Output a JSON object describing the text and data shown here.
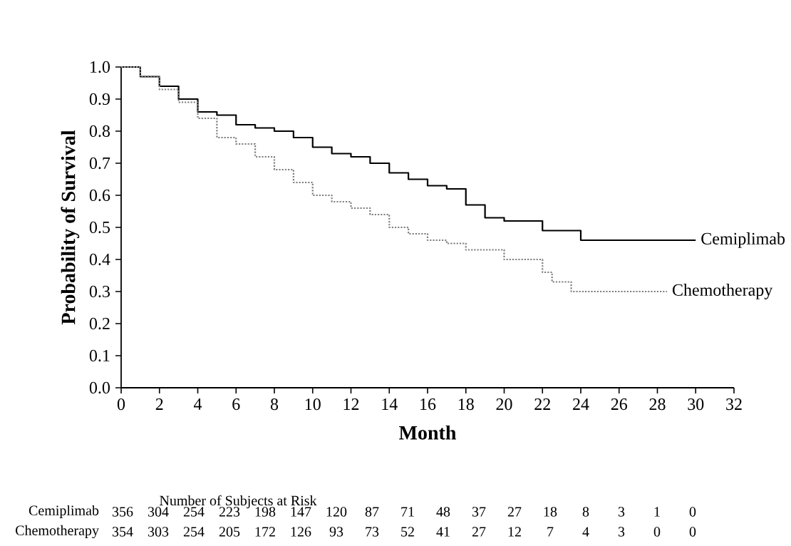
{
  "chart_data": {
    "type": "step",
    "xlabel": "Month",
    "ylabel": "Probability of Survival",
    "xlim": [
      0,
      32
    ],
    "ylim": [
      0,
      1.0
    ],
    "xticks": [
      0,
      2,
      4,
      6,
      8,
      10,
      12,
      14,
      16,
      18,
      20,
      22,
      24,
      26,
      28,
      30,
      32
    ],
    "yticks": [
      {
        "value": 0,
        "label": "0.0"
      },
      {
        "value": 0.1,
        "label": "0.1"
      },
      {
        "value": 0.2,
        "label": "0.2"
      },
      {
        "value": 0.3,
        "label": "0.3"
      },
      {
        "value": 0.4,
        "label": "0.4"
      },
      {
        "value": 0.5,
        "label": "0.5"
      },
      {
        "value": 0.6,
        "label": "0.6"
      },
      {
        "value": 0.7,
        "label": "0.7"
      },
      {
        "value": 0.8,
        "label": "0.8"
      },
      {
        "value": 0.9,
        "label": "0.9"
      },
      {
        "value": 1.0,
        "label": "1.0"
      }
    ],
    "grid": false,
    "legend": false,
    "marker": "none",
    "series": [
      {
        "name": "Cemiplimab",
        "color": "#000000",
        "line_style": "solid",
        "x": [
          0,
          1,
          2,
          3,
          4,
          5,
          6,
          7,
          8,
          9,
          10,
          11,
          12,
          13,
          14,
          15,
          16,
          17,
          18,
          19,
          20,
          21,
          22,
          23,
          24,
          26,
          30
        ],
        "values": [
          1.0,
          0.97,
          0.94,
          0.9,
          0.86,
          0.85,
          0.82,
          0.81,
          0.8,
          0.78,
          0.75,
          0.73,
          0.72,
          0.7,
          0.67,
          0.65,
          0.63,
          0.62,
          0.57,
          0.53,
          0.52,
          0.52,
          0.49,
          0.49,
          0.46,
          0.46,
          0.46
        ]
      },
      {
        "name": "Chemotherapy",
        "color": "#808080",
        "line_style": "dotted",
        "x": [
          0,
          1,
          2,
          3,
          4,
          5,
          6,
          7,
          8,
          9,
          10,
          11,
          12,
          13,
          14,
          15,
          16,
          17,
          18,
          19,
          20,
          21,
          22,
          22.5,
          23.5,
          28.5
        ],
        "values": [
          1.0,
          0.97,
          0.93,
          0.89,
          0.84,
          0.78,
          0.76,
          0.72,
          0.68,
          0.64,
          0.6,
          0.58,
          0.56,
          0.54,
          0.5,
          0.48,
          0.46,
          0.45,
          0.43,
          0.43,
          0.4,
          0.4,
          0.36,
          0.33,
          0.3,
          0.3
        ]
      }
    ],
    "annotations": [
      "Number of Subjects at Risk",
      "Cemiplimab",
      "356",
      "304",
      "254",
      "223",
      "198",
      "147",
      "120",
      "87",
      "71",
      "48",
      "37",
      "27",
      "18",
      "8",
      "3",
      "1",
      "0",
      "Chemotherapy",
      "354",
      "303",
      "254",
      "205",
      "172",
      "126",
      "93",
      "73",
      "52",
      "41",
      "27",
      "12",
      "7",
      "4",
      "3",
      "0",
      "0"
    ]
  }
}
